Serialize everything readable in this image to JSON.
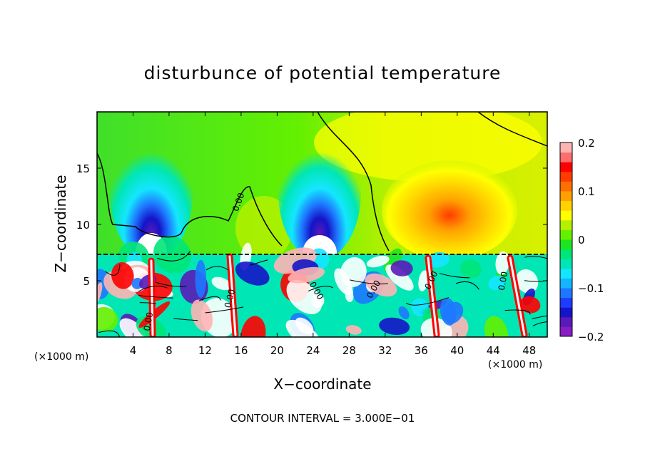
{
  "chart_data": {
    "type": "heatmap",
    "title": "disturbunce of potential temperature",
    "xlabel": "X−coordinate",
    "ylabel": "Z−coordinate",
    "x_unit": "(×1000 m)",
    "y_unit": "(×1000 m)",
    "xlim": [
      0,
      50
    ],
    "ylim": [
      0,
      20
    ],
    "xticks": [
      4,
      8,
      12,
      16,
      20,
      24,
      28,
      32,
      36,
      40,
      44,
      48
    ],
    "yticks": [
      5,
      10,
      15
    ],
    "colorbar": {
      "range": [
        -0.2,
        0.2
      ],
      "ticks": [
        "0.2",
        "0.1",
        "0",
        "−0.1",
        "−0.2"
      ],
      "colors": [
        "#8a1cc4",
        "#5a1ab8",
        "#1414c8",
        "#1e3cff",
        "#1e78ff",
        "#14b4ff",
        "#14e6ff",
        "#00e6b4",
        "#00e678",
        "#1ee61e",
        "#64f000",
        "#b4f000",
        "#ffff00",
        "#ffd200",
        "#ffa000",
        "#ff6e00",
        "#ff3c00",
        "#ff0000",
        "#ff6e6e",
        "#ffb4b4"
      ]
    },
    "contour_label": "0.00",
    "contour_interval_label": "CONTOUR INTERVAL = 3.000E−01",
    "grid": false
  },
  "colors": {
    "background": "#00dc78",
    "neg_max": "#8a1cc4",
    "pos_max": "#ffb4b4",
    "mid": "#40e02a",
    "warm": "#ffd200"
  }
}
